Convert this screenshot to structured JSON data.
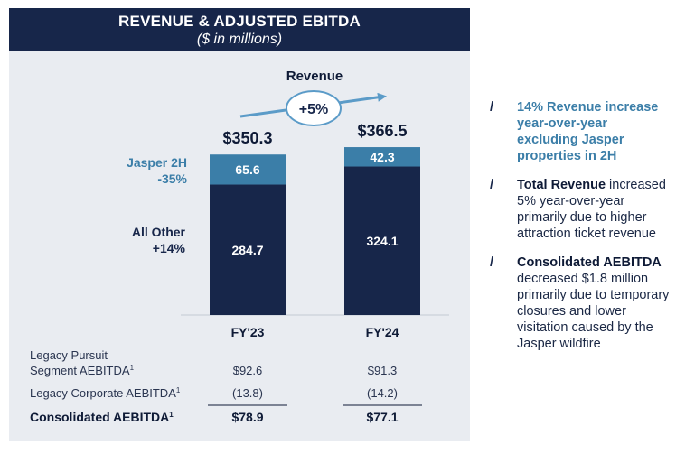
{
  "header": {
    "title": "REVENUE & ADJUSTED EBITDA",
    "subtitle": "($ in millions)"
  },
  "chart_data": {
    "type": "bar",
    "stacked": true,
    "title": "Revenue",
    "growth_badge": "+5%",
    "categories": [
      "FY'23",
      "FY'24"
    ],
    "totals": [
      350.3,
      366.5
    ],
    "total_labels": [
      "$350.3",
      "$366.5"
    ],
    "series": [
      {
        "name": "All Other",
        "change": "+14%",
        "values": [
          284.7,
          324.1
        ],
        "value_labels": [
          "284.7",
          "324.1"
        ],
        "color": "#17264a"
      },
      {
        "name": "Jasper 2H",
        "change": "-35%",
        "values": [
          65.6,
          42.3
        ],
        "value_labels": [
          "65.6",
          "42.3"
        ],
        "color": "#3b7ea8"
      }
    ],
    "ylim": [
      0,
      366.5
    ],
    "grid": false,
    "legend": "left"
  },
  "table": {
    "rows": [
      {
        "label_line1": "Legacy Pursuit",
        "label_line2": "Segment AEBITDA",
        "sup": "1",
        "values": [
          "$92.6",
          "$91.3"
        ]
      },
      {
        "label_line1": "Legacy Corporate AEBITDA",
        "label_line2": "",
        "sup": "1",
        "values": [
          "(13.8)",
          "(14.2)"
        ]
      },
      {
        "label_line1": "Consolidated AEBITDA",
        "label_line2": "",
        "sup": "1",
        "values": [
          "$78.9",
          "$77.1"
        ],
        "bold": true
      }
    ]
  },
  "bullets": [
    {
      "bold": "14% Revenue increase year-over-year excluding Jasper properties in 2H",
      "text": ""
    },
    {
      "bold": "Total Revenue",
      "text": " increased 5% year-over-year primarily due to higher attraction ticket revenue"
    },
    {
      "bold": "Consolidated AEBITDA",
      "text": " decreased $1.8 million primarily due to temporary closures and lower visitation caused by the Jasper wildfire"
    }
  ],
  "colors": {
    "navy": "#17264a",
    "accent_blue": "#3b7ea8",
    "panel_bg": "#e9ecf1"
  }
}
